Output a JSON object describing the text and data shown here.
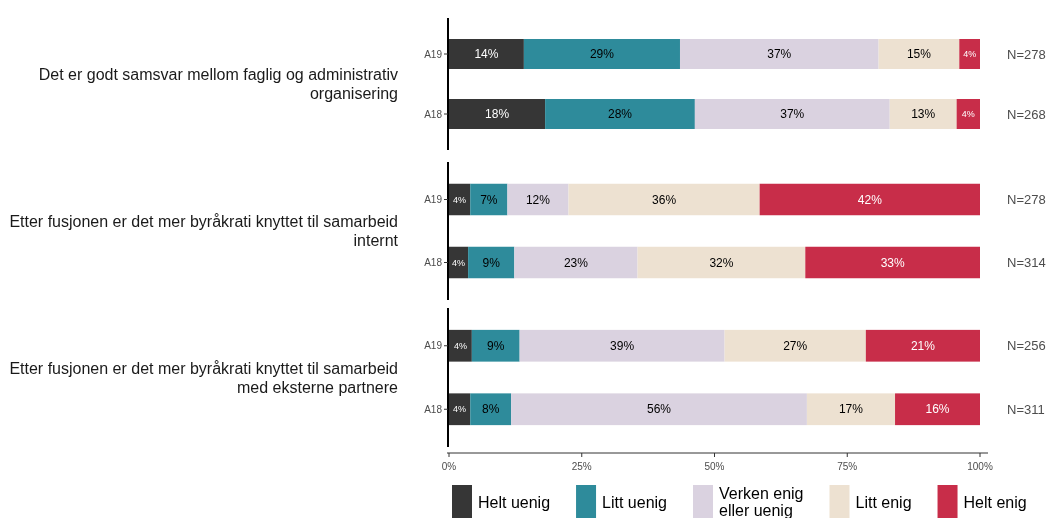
{
  "chart_data": [
    {
      "type": "bar",
      "orientation": "horizontal",
      "stacked": true,
      "title": "Det er godt samsvar mellom faglig og administrativ organisering",
      "categories": [
        "A19",
        "A18"
      ],
      "xlim": [
        0,
        100
      ],
      "tick_labels": "y",
      "series": [
        {
          "color": "#363636",
          "values": [
            14.1,
            18.1
          ],
          "value_labels": [
            "14%",
            "18%"
          ]
        },
        {
          "color": "#2e8b9b",
          "values": [
            29.4,
            28.2
          ],
          "value_labels": [
            "29%",
            "28%"
          ]
        },
        {
          "color": "#dad2e0",
          "values": [
            37.4,
            36.7
          ],
          "value_labels": [
            "37%",
            "37%"
          ]
        },
        {
          "color": "#ede1d1",
          "values": [
            15.2,
            12.6
          ],
          "value_labels": [
            "15%",
            "13%"
          ]
        },
        {
          "color": "#c82d49",
          "values": [
            3.9,
            4.4
          ],
          "value_labels": [
            "4%",
            "4%"
          ]
        }
      ],
      "annotations": [
        "N=278",
        "N=268"
      ]
    },
    {
      "type": "bar",
      "orientation": "horizontal",
      "stacked": true,
      "title": "Etter fusjonen er det mer byråkrati knyttet til samarbeid internt",
      "categories": [
        "A19",
        "A18"
      ],
      "xlim": [
        0,
        100
      ],
      "tick_labels": "y",
      "series": [
        {
          "color": "#363636",
          "values": [
            4.0,
            3.6
          ],
          "value_labels": [
            "4%",
            "4%"
          ]
        },
        {
          "color": "#2e8b9b",
          "values": [
            7.0,
            8.7
          ],
          "value_labels": [
            "7%",
            "9%"
          ]
        },
        {
          "color": "#dad2e0",
          "values": [
            11.5,
            23.2
          ],
          "value_labels": [
            "12%",
            "23%"
          ]
        },
        {
          "color": "#ede1d1",
          "values": [
            36.0,
            31.6
          ],
          "value_labels": [
            "36%",
            "32%"
          ]
        },
        {
          "color": "#c82d49",
          "values": [
            41.5,
            32.9
          ],
          "value_labels": [
            "42%",
            "33%"
          ]
        }
      ],
      "annotations": [
        "N=278",
        "N=314"
      ]
    },
    {
      "type": "bar",
      "orientation": "horizontal",
      "stacked": true,
      "title": "Etter fusjonen er det mer byråkrati knyttet til samarbeid med eksterne partnere",
      "categories": [
        "A19",
        "A18"
      ],
      "xlim": [
        0,
        100
      ],
      "xticks": [
        {
          "value": 0,
          "label": "0%"
        },
        {
          "value": 25,
          "label": "25%"
        },
        {
          "value": 50,
          "label": "50%"
        },
        {
          "value": 75,
          "label": "75%"
        },
        {
          "value": 100,
          "label": "100%"
        }
      ],
      "legend": "bottom",
      "series": [
        {
          "name": "Helt uenig",
          "color": "#363636",
          "values": [
            4.3,
            4.0
          ],
          "value_labels": [
            "4%",
            "4%"
          ]
        },
        {
          "name": "Litt uenig",
          "color": "#2e8b9b",
          "values": [
            9.0,
            7.7
          ],
          "value_labels": [
            "9%",
            "8%"
          ]
        },
        {
          "name": "Verken enig eller uenig",
          "color": "#dad2e0",
          "values": [
            38.6,
            55.7
          ],
          "value_labels": [
            "39%",
            "56%"
          ]
        },
        {
          "name": "Litt enig",
          "color": "#ede1d1",
          "values": [
            26.6,
            16.6
          ],
          "value_labels": [
            "27%",
            "17%"
          ]
        },
        {
          "name": "Helt enig",
          "color": "#c82d49",
          "values": [
            21.5,
            16.0
          ],
          "value_labels": [
            "21%",
            "16%"
          ]
        }
      ],
      "annotations": [
        "N=256",
        "N=311"
      ]
    }
  ]
}
